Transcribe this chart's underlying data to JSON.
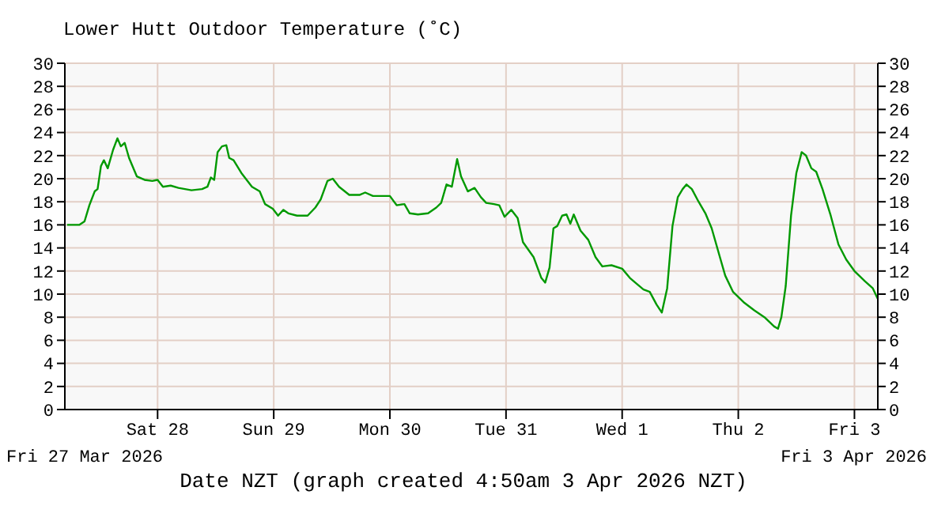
{
  "chart_data": {
    "type": "line",
    "title": "Lower Hutt Outdoor Temperature (˚C)",
    "xlabel": "Date NZT (graph created 4:50am 3 Apr 2026 NZT)",
    "annotations": [
      "Fri 27 Mar 2026",
      "Fri 3 Apr 2026"
    ],
    "x": [
      "2026-03-27T05:18",
      "2026-03-27T07:48",
      "2026-03-27T08:54",
      "2026-03-27T09:54",
      "2026-03-27T11:00",
      "2026-03-27T11:36",
      "2026-03-27T12:18",
      "2026-03-27T12:54",
      "2026-03-27T13:42",
      "2026-03-27T14:48",
      "2026-03-27T15:42",
      "2026-03-27T16:24",
      "2026-03-27T17:12",
      "2026-03-27T18:06",
      "2026-03-27T19:42",
      "2026-03-27T21:18",
      "2026-03-27T22:54",
      "2026-03-28T00:00",
      "2026-03-28T01:06",
      "2026-03-28T02:42",
      "2026-03-28T04:18",
      "2026-03-28T07:00",
      "2026-03-28T09:12",
      "2026-03-28T10:18",
      "2026-03-28T11:00",
      "2026-03-28T11:42",
      "2026-03-28T12:24",
      "2026-03-28T13:18",
      "2026-03-28T14:12",
      "2026-03-28T14:48",
      "2026-03-28T15:42",
      "2026-03-28T17:18",
      "2026-03-28T19:30",
      "2026-03-28T21:06",
      "2026-03-28T22:12",
      "2026-03-28T23:48",
      "2026-03-29T00:54",
      "2026-03-29T02:00",
      "2026-03-29T03:00",
      "2026-03-29T04:48",
      "2026-03-29T07:00",
      "2026-03-29T08:36",
      "2026-03-29T09:42",
      "2026-03-29T11:06",
      "2026-03-29T12:12",
      "2026-03-29T13:30",
      "2026-03-29T15:36",
      "2026-03-29T17:48",
      "2026-03-29T18:54",
      "2026-03-29T20:30",
      "2026-03-30T00:00",
      "2026-03-30T01:24",
      "2026-03-30T03:00",
      "2026-03-30T04:06",
      "2026-03-30T05:48",
      "2026-03-30T07:54",
      "2026-03-30T09:36",
      "2026-03-30T10:36",
      "2026-03-30T11:42",
      "2026-03-30T12:48",
      "2026-03-30T13:54",
      "2026-03-30T14:42",
      "2026-03-30T16:06",
      "2026-03-30T17:30",
      "2026-03-30T18:48",
      "2026-03-30T19:54",
      "2026-03-30T21:30",
      "2026-03-30T22:36",
      "2026-03-30T23:42",
      "2026-03-31T01:06",
      "2026-03-31T02:24",
      "2026-03-31T03:30",
      "2026-03-31T05:42",
      "2026-03-31T07:18",
      "2026-03-31T08:06",
      "2026-03-31T09:00",
      "2026-03-31T09:48",
      "2026-03-31T10:36",
      "2026-03-31T11:36",
      "2026-03-31T12:30",
      "2026-03-31T13:18",
      "2026-03-31T14:00",
      "2026-03-31T15:24",
      "2026-03-31T17:00",
      "2026-03-31T18:30",
      "2026-03-31T19:54",
      "2026-03-31T21:48",
      "2026-04-01T00:00",
      "2026-04-01T01:36",
      "2026-04-01T02:42",
      "2026-04-01T04:24",
      "2026-04-01T05:42",
      "2026-04-01T07:06",
      "2026-04-01T08:12",
      "2026-04-01T09:18",
      "2026-04-01T10:24",
      "2026-04-01T11:30",
      "2026-04-01T12:30",
      "2026-04-01T13:18",
      "2026-04-01T14:24",
      "2026-04-01T15:48",
      "2026-04-01T17:12",
      "2026-04-01T18:30",
      "2026-04-01T20:12",
      "2026-04-01T21:18",
      "2026-04-01T22:54",
      "2026-04-02T01:06",
      "2026-04-02T03:18",
      "2026-04-02T05:24",
      "2026-04-02T07:24",
      "2026-04-02T08:12",
      "2026-04-02T08:54",
      "2026-04-02T09:48",
      "2026-04-02T10:54",
      "2026-04-02T12:00",
      "2026-04-02T13:06",
      "2026-04-02T14:00",
      "2026-04-02T15:06",
      "2026-04-02T16:06",
      "2026-04-02T17:24",
      "2026-04-02T19:06",
      "2026-04-02T20:42",
      "2026-04-02T22:18",
      "2026-04-03T00:00",
      "2026-04-03T02:12",
      "2026-04-03T03:48",
      "2026-04-03T04:48"
    ],
    "series": [
      {
        "color": "#009900",
        "values": [
          16.0,
          16.0,
          16.3,
          17.7,
          18.9,
          19.1,
          21.1,
          21.6,
          20.9,
          22.5,
          23.5,
          22.8,
          23.1,
          21.8,
          20.2,
          19.9,
          19.8,
          19.9,
          19.3,
          19.4,
          19.2,
          19.0,
          19.1,
          19.3,
          20.1,
          19.9,
          22.3,
          22.8,
          22.9,
          21.8,
          21.6,
          20.5,
          19.3,
          18.9,
          17.8,
          17.4,
          16.8,
          17.3,
          17.0,
          16.8,
          16.8,
          17.5,
          18.2,
          19.8,
          20.0,
          19.3,
          18.6,
          18.6,
          18.8,
          18.5,
          18.5,
          17.7,
          17.8,
          17.0,
          16.9,
          17.0,
          17.5,
          17.9,
          19.5,
          19.3,
          21.7,
          20.2,
          18.9,
          19.2,
          18.4,
          17.9,
          17.8,
          17.7,
          16.7,
          17.3,
          16.6,
          14.5,
          13.2,
          11.4,
          11.0,
          12.3,
          15.7,
          15.9,
          16.8,
          16.9,
          16.1,
          16.9,
          15.5,
          14.7,
          13.2,
          12.4,
          12.5,
          12.2,
          11.4,
          11.0,
          10.4,
          10.2,
          9.1,
          8.4,
          10.5,
          15.9,
          18.4,
          19.1,
          19.5,
          19.1,
          18.0,
          17.0,
          15.7,
          13.2,
          11.6,
          10.2,
          9.3,
          8.6,
          8.0,
          7.2,
          7.0,
          8.0,
          10.7,
          16.8,
          20.5,
          22.3,
          22.0,
          20.9,
          20.6,
          19.1,
          16.8,
          14.3,
          13.0,
          12.0,
          11.1,
          10.5,
          9.6
        ]
      }
    ],
    "xlim": [
      "2026-03-27T04:50",
      "2026-04-03T04:50"
    ],
    "xticks": [
      {
        "value": "2026-03-28T00:00",
        "label": "Sat 28"
      },
      {
        "value": "2026-03-29T00:00",
        "label": "Sun 29"
      },
      {
        "value": "2026-03-30T00:00",
        "label": "Mon 30"
      },
      {
        "value": "2026-03-31T00:00",
        "label": "Tue 31"
      },
      {
        "value": "2026-04-01T00:00",
        "label": "Wed 1"
      },
      {
        "value": "2026-04-02T00:00",
        "label": "Thu 2"
      },
      {
        "value": "2026-04-03T00:00",
        "label": "Fri 3"
      }
    ],
    "ylim": [
      0,
      30
    ],
    "yticks": [
      0,
      2,
      4,
      6,
      8,
      10,
      12,
      14,
      16,
      18,
      20,
      22,
      24,
      26,
      28,
      30
    ],
    "y2lim": [
      0,
      30
    ],
    "y2ticks": [
      0,
      2,
      4,
      6,
      8,
      10,
      12,
      14,
      16,
      18,
      20,
      22,
      24,
      26,
      28,
      30
    ],
    "grid": true,
    "marker": "none",
    "line_style": "solid"
  }
}
